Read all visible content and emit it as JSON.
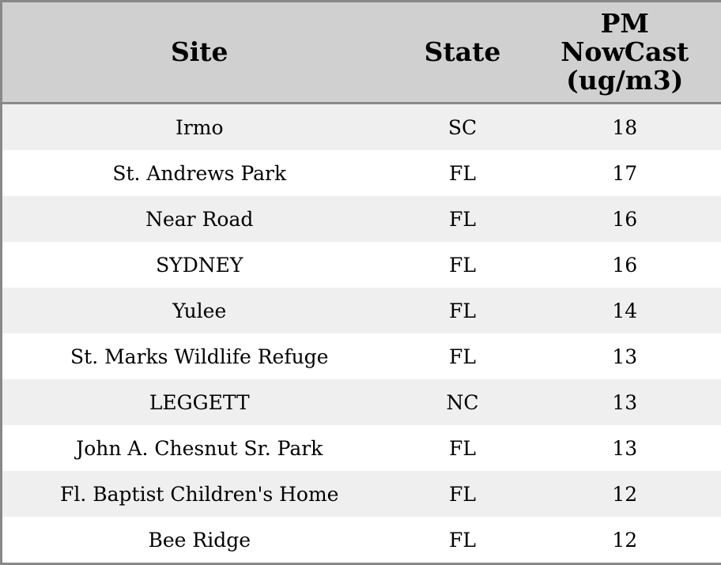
{
  "table": {
    "columns": [
      "Site",
      "State",
      "PM NowCast (ug/m3)"
    ],
    "rows": [
      [
        "Irmo",
        "SC",
        "18"
      ],
      [
        "St. Andrews Park",
        "FL",
        "17"
      ],
      [
        "Near Road",
        "FL",
        "16"
      ],
      [
        "SYDNEY",
        "FL",
        "16"
      ],
      [
        "Yulee",
        "FL",
        "14"
      ],
      [
        "St. Marks Wildlife Refuge",
        "FL",
        "13"
      ],
      [
        "LEGGETT",
        "NC",
        "13"
      ],
      [
        "John A. Chesnut Sr. Park",
        "FL",
        "13"
      ],
      [
        "Fl. Baptist Children's Home",
        "FL",
        "12"
      ],
      [
        "Bee Ridge",
        "FL",
        "12"
      ]
    ]
  }
}
